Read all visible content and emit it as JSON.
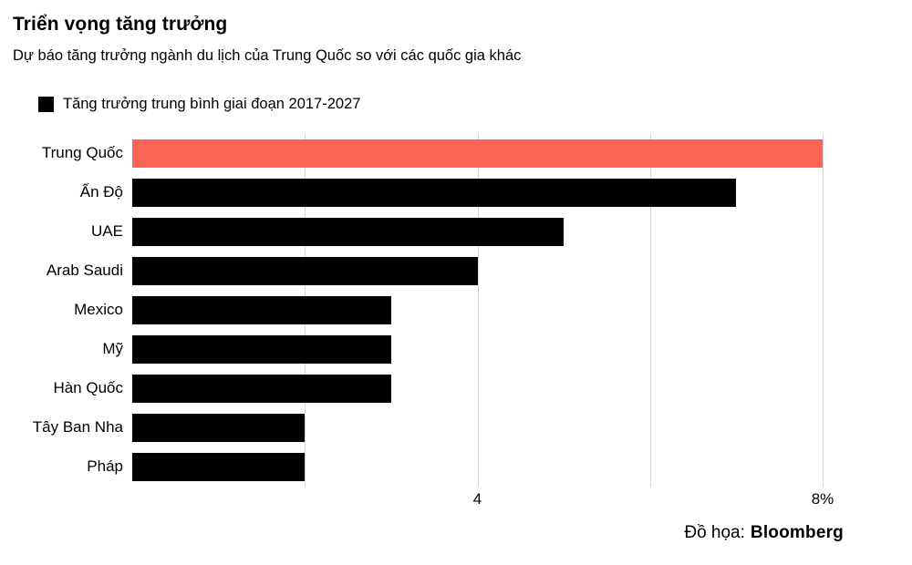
{
  "header": {
    "title": "Triển vọng tăng trưởng",
    "subtitle": "Dự báo tăng trưởng ngành du lịch của Trung Quốc so với các quốc gia khác"
  },
  "legend": {
    "label": "Tăng trưởng trung bình giai đoạn 2017-2027",
    "swatch_color": "#000000"
  },
  "chart_data": {
    "type": "bar",
    "orientation": "horizontal",
    "title": "Triển vọng tăng trưởng",
    "subtitle": "Dự báo tăng trưởng ngành du lịch của Trung Quốc so với các quốc gia khác",
    "legend": "Tăng trưởng trung bình giai đoạn 2017-2027",
    "legend_position": "top-left",
    "categories": [
      "Trung Quốc",
      "Ấn Độ",
      "UAE",
      "Arab Saudi",
      "Mexico",
      "Mỹ",
      "Hàn Quốc",
      "Tây Ban Nha",
      "Pháp"
    ],
    "values": [
      8,
      7,
      5,
      4,
      3,
      3,
      3,
      2,
      2
    ],
    "unit": "%",
    "xlim": [
      0,
      8
    ],
    "gridlines": [
      2,
      4,
      6,
      8
    ],
    "grid": true,
    "tick_labels": [
      {
        "value": 4,
        "label": "4"
      },
      {
        "value": 8,
        "label": "8%"
      }
    ],
    "highlight_index": 0,
    "highlight_color": "#fa6456",
    "bar_color": "#000000",
    "gridline_color": "#d4d4d4"
  },
  "footer": {
    "credit_label": "Đồ họa:",
    "credit_brand": "Bloomberg"
  }
}
